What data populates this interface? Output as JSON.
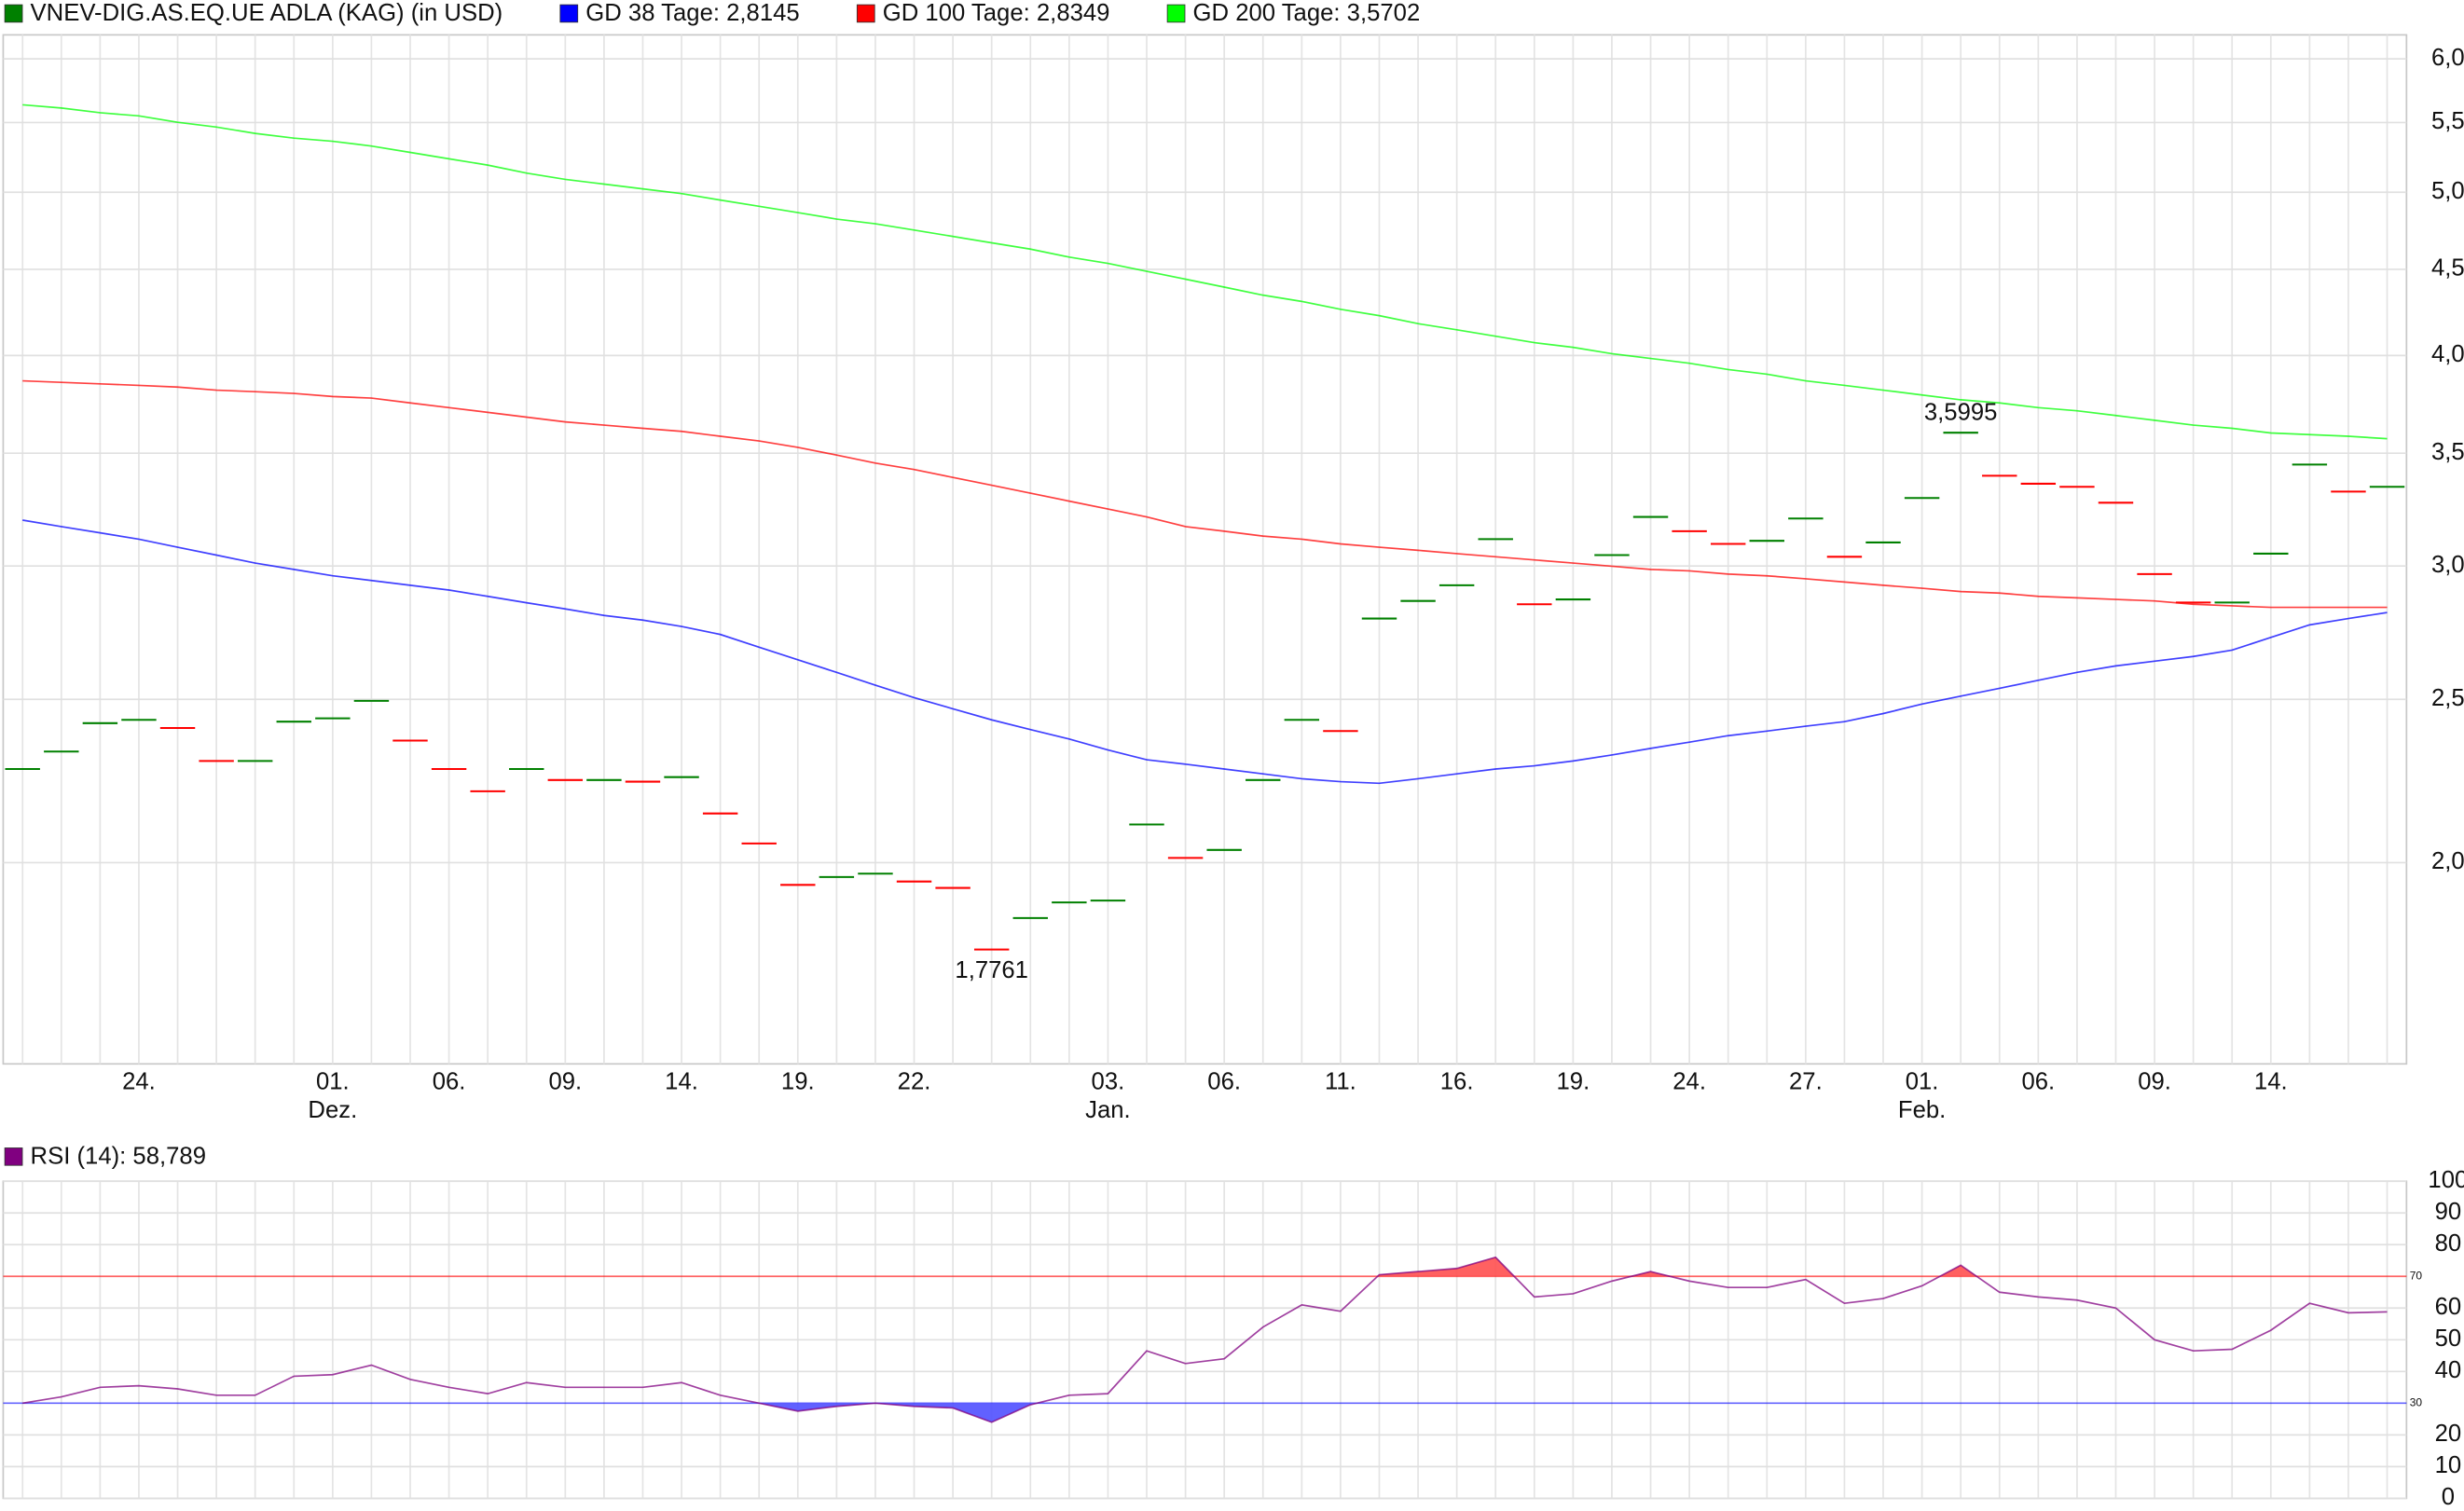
{
  "chart_data": [
    {
      "type": "stock",
      "categories": [
        null,
        null,
        null,
        "24.",
        null,
        null,
        null,
        null,
        "01.",
        null,
        null,
        "06.",
        null,
        null,
        "09.",
        null,
        null,
        "14.",
        null,
        null,
        "19.",
        null,
        null,
        "22.",
        null,
        null,
        null,
        null,
        "03.",
        null,
        null,
        "06.",
        null,
        null,
        "11.",
        null,
        null,
        "16.",
        null,
        null,
        "19.",
        null,
        null,
        "24.",
        null,
        null,
        "27.",
        null,
        null,
        "01.",
        null,
        null,
        "06.",
        null,
        null,
        "09.",
        null,
        null,
        "14.",
        null,
        null,
        null
      ],
      "months": [
        null,
        null,
        null,
        null,
        null,
        null,
        null,
        null,
        "Dez.",
        null,
        null,
        null,
        null,
        null,
        null,
        null,
        null,
        null,
        null,
        null,
        null,
        null,
        null,
        null,
        null,
        null,
        null,
        null,
        "Jan.",
        null,
        null,
        null,
        null,
        null,
        null,
        null,
        null,
        null,
        null,
        null,
        null,
        null,
        null,
        null,
        null,
        null,
        null,
        null,
        null,
        "Feb.",
        null,
        null,
        null,
        null,
        null,
        null,
        null,
        null,
        null,
        null,
        null,
        null
      ],
      "log_scale": true,
      "ylim": [
        1.519,
        6.2
      ],
      "yticks": [
        {
          "value": 2.0,
          "label": "2,0"
        },
        {
          "value": 2.5,
          "label": "2,5"
        },
        {
          "value": 3.0,
          "label": "3,0"
        },
        {
          "value": 3.5,
          "label": "3,5"
        },
        {
          "value": 4.0,
          "label": "4,0"
        },
        {
          "value": 4.5,
          "label": "4,5"
        },
        {
          "value": 5.0,
          "label": "5,0"
        },
        {
          "value": 5.5,
          "label": "5,5"
        },
        {
          "value": 6.0,
          "label": "6,0"
        }
      ],
      "grid": true,
      "up_color": "#008000",
      "down_color": "#ff0000",
      "series": [
        {
          "name": "VNEV-DIG.AS.EQ.UE ADLA (KAG) (in USD)",
          "color": "#008000",
          "style": "ticks",
          "values": [
            2.273,
            2.328,
            2.42,
            2.431,
            2.404,
            2.298,
            2.298,
            2.425,
            2.436,
            2.495,
            2.363,
            2.273,
            2.205,
            2.273,
            2.239,
            2.239,
            2.234,
            2.248,
            2.139,
            2.053,
            1.94,
            1.961,
            1.97,
            1.949,
            1.932,
            1.7761,
            1.854,
            1.894,
            1.899,
            2.107,
            2.013,
            2.035,
            2.239,
            2.431,
            2.394,
            2.792,
            2.86,
            2.922,
            3.112,
            2.847,
            2.866,
            3.045,
            3.208,
            3.146,
            3.092,
            3.105,
            3.201,
            3.038,
            3.098,
            3.292,
            3.5995,
            3.394,
            3.357,
            3.343,
            3.271,
            2.967,
            2.854,
            2.854,
            3.051,
            3.446,
            3.321,
            3.343
          ],
          "value_labels": [
            null,
            null,
            null,
            null,
            null,
            null,
            null,
            null,
            null,
            null,
            null,
            null,
            null,
            null,
            null,
            null,
            null,
            null,
            null,
            null,
            null,
            null,
            null,
            null,
            null,
            "1,7761",
            null,
            null,
            null,
            null,
            null,
            null,
            null,
            null,
            null,
            null,
            null,
            null,
            null,
            null,
            null,
            null,
            null,
            null,
            null,
            null,
            null,
            null,
            null,
            null,
            "3,5995",
            null,
            null,
            null,
            null,
            null,
            null,
            null,
            null,
            null,
            null,
            null
          ]
        },
        {
          "name": "GD 38 Tage: 2,8145",
          "color": "#0000ff",
          "style": "line",
          "values": [
            3.194,
            3.166,
            3.139,
            3.112,
            3.078,
            3.045,
            3.012,
            2.986,
            2.96,
            2.941,
            2.922,
            2.903,
            2.878,
            2.853,
            2.829,
            2.804,
            2.786,
            2.762,
            2.732,
            2.685,
            2.639,
            2.594,
            2.549,
            2.506,
            2.468,
            2.431,
            2.399,
            2.368,
            2.333,
            2.302,
            2.288,
            2.273,
            2.258,
            2.243,
            2.234,
            2.229,
            2.243,
            2.258,
            2.273,
            2.283,
            2.298,
            2.317,
            2.338,
            2.358,
            2.379,
            2.394,
            2.41,
            2.425,
            2.452,
            2.484,
            2.511,
            2.538,
            2.566,
            2.594,
            2.617,
            2.634,
            2.651,
            2.674,
            2.721,
            2.768,
            2.792,
            2.815
          ]
        },
        {
          "name": "GD 100 Tage: 2,8349",
          "color": "#ff0000",
          "style": "line",
          "values": [
            3.864,
            3.856,
            3.848,
            3.84,
            3.831,
            3.815,
            3.807,
            3.798,
            3.782,
            3.774,
            3.749,
            3.725,
            3.701,
            3.677,
            3.653,
            3.637,
            3.621,
            3.606,
            3.582,
            3.559,
            3.528,
            3.491,
            3.453,
            3.423,
            3.386,
            3.35,
            3.314,
            3.278,
            3.243,
            3.208,
            3.166,
            3.146,
            3.125,
            3.112,
            3.092,
            3.078,
            3.065,
            3.051,
            3.038,
            3.025,
            3.012,
            2.999,
            2.986,
            2.98,
            2.967,
            2.96,
            2.948,
            2.935,
            2.922,
            2.91,
            2.897,
            2.891,
            2.878,
            2.872,
            2.866,
            2.86,
            2.847,
            2.841,
            2.835,
            2.835,
            2.835,
            2.835
          ]
        },
        {
          "name": "GD 200 Tage: 3,5702",
          "color": "#00ff00",
          "style": "line",
          "values": [
            5.635,
            5.61,
            5.574,
            5.55,
            5.502,
            5.466,
            5.419,
            5.384,
            5.361,
            5.326,
            5.28,
            5.234,
            5.189,
            5.133,
            5.089,
            5.056,
            5.023,
            4.991,
            4.947,
            4.905,
            4.863,
            4.82,
            4.789,
            4.748,
            4.707,
            4.666,
            4.626,
            4.576,
            4.537,
            4.488,
            4.44,
            4.392,
            4.344,
            4.307,
            4.261,
            4.224,
            4.178,
            4.143,
            4.107,
            4.071,
            4.045,
            4.01,
            3.984,
            3.958,
            3.924,
            3.899,
            3.864,
            3.84,
            3.815,
            3.79,
            3.765,
            3.749,
            3.725,
            3.709,
            3.685,
            3.661,
            3.637,
            3.621,
            3.598,
            3.59,
            3.582,
            3.57
          ]
        }
      ]
    },
    {
      "type": "line",
      "ylim": [
        0,
        100
      ],
      "yticks": [
        0,
        10,
        20,
        40,
        50,
        60,
        80,
        90,
        100
      ],
      "grid": true,
      "reference_lines": [
        {
          "value": 70,
          "color": "#ff0000"
        },
        {
          "value": 30,
          "color": "#0000ff"
        }
      ],
      "series": [
        {
          "name": "RSI (14): 58,789",
          "color": "#800080",
          "values": [
            30,
            32,
            35,
            35.5,
            34.5,
            32.5,
            32.5,
            38.5,
            39,
            42,
            37.5,
            35,
            33,
            36.5,
            35,
            35,
            35,
            36.5,
            32.5,
            30,
            27.5,
            29,
            30,
            29,
            28.5,
            24,
            29.5,
            32.5,
            33,
            46.5,
            42.5,
            44,
            54,
            61,
            59,
            70.5,
            71.5,
            72.5,
            76,
            63.5,
            64.5,
            68.5,
            71.5,
            68.5,
            66.5,
            66.5,
            69,
            61.5,
            63,
            67,
            73.5,
            65,
            63.5,
            62.5,
            60,
            50,
            46.5,
            47,
            53,
            61.5,
            58.5,
            58.789
          ]
        }
      ]
    }
  ]
}
